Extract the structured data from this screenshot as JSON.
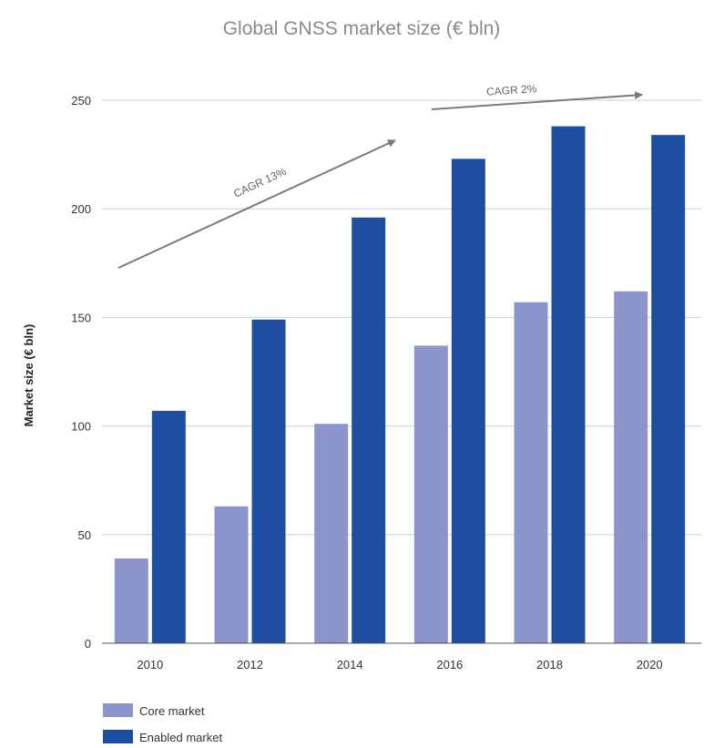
{
  "chart_data": {
    "type": "bar",
    "title": "Global GNSS market size (€ bln)",
    "ylabel": "Market size (€ bln)",
    "xlabel": "",
    "categories": [
      "2010",
      "2012",
      "2014",
      "2016",
      "2018",
      "2020"
    ],
    "ylim": [
      0,
      250
    ],
    "yticks": [
      0,
      50,
      100,
      150,
      200,
      250
    ],
    "grid": true,
    "legend_position": "bottom-left",
    "series": [
      {
        "name": "Core market",
        "values": [
          39,
          63,
          101,
          137,
          157,
          162
        ],
        "color": "#8c94cc"
      },
      {
        "name": "Enabled market",
        "values": [
          107,
          149,
          196,
          223,
          238,
          234
        ],
        "color": "#1d4ea1"
      }
    ],
    "annotations": [
      {
        "text": "CAGR 13%"
      },
      {
        "text": "CAGR 2%"
      }
    ]
  }
}
